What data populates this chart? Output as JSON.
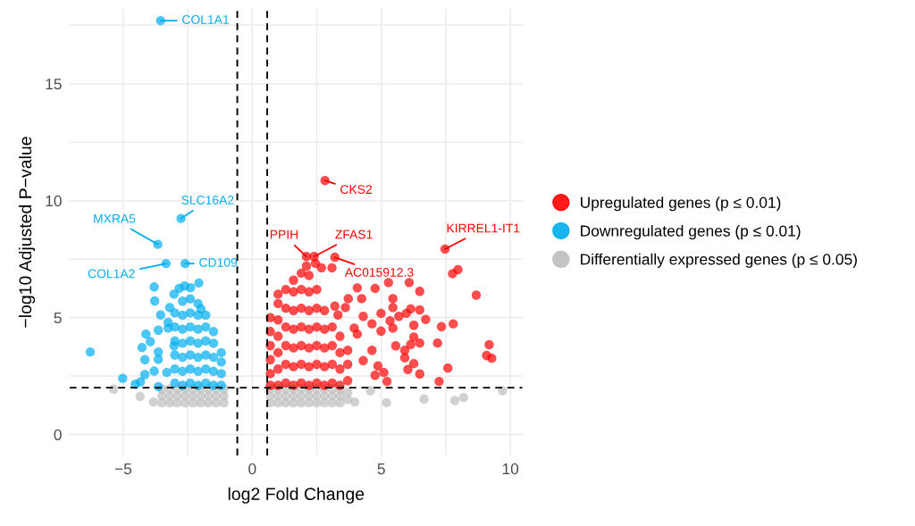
{
  "chart_data": {
    "type": "scatter",
    "xlabel": "log2 Fold Change",
    "ylabel": "−log10 Adjusted P−value",
    "xlim": [
      -7.08,
      10.47
    ],
    "ylim": [
      -0.9,
      18.2
    ],
    "xticks": [
      {
        "value": -5,
        "label": "−5"
      },
      {
        "value": -2.5,
        "label": null
      },
      0,
      {
        "value": 2.5,
        "label": null
      },
      5,
      {
        "value": 7.5,
        "label": null
      },
      10
    ],
    "yticks": [
      0,
      {
        "value": 2.5,
        "label": null
      },
      5,
      {
        "value": 7.5,
        "label": null
      },
      10,
      {
        "value": 12.5,
        "label": null
      },
      15,
      {
        "value": 17.5,
        "label": null
      }
    ],
    "grid": true,
    "legend": "right",
    "marker": "circle",
    "ref_lines": [
      {
        "axis": "x",
        "value": -0.58,
        "color": "#000000",
        "line_style": "dashed"
      },
      {
        "axis": "x",
        "value": 0.58,
        "color": "#000000",
        "line_style": "dashed"
      },
      {
        "axis": "y",
        "value": 2,
        "color": "#000000",
        "line_style": "dashed"
      }
    ],
    "series": [
      {
        "name": "Upregulated genes (p ≤ 0.01)",
        "color": "#ff0000",
        "x": [
          3.09,
          2.1,
          2.45,
          2.68,
          5.28,
          6.08,
          4.76,
          6.49,
          4.07,
          5.45,
          4.24,
          5.45,
          6.14,
          6.49,
          5.97,
          6.72,
          4.99,
          5.34,
          5.68,
          6.26,
          4.64,
          4.99,
          5.45,
          6.26,
          6.49,
          5.56,
          5.91,
          6.14,
          5.91,
          6.26,
          6.03,
          6.49,
          5.1,
          5.22,
          4.87,
          4.07,
          3.72,
          3.61,
          3.2,
          3.32,
          4.3,
          3.95,
          4.64,
          4.3,
          4.76,
          7.76,
          7.97,
          8.68,
          7.79,
          7.33,
          7.18,
          9.18,
          9.08,
          9.28,
          7.58,
          7.24,
          2.82,
          2.1,
          2.4,
          3.2,
          7.47,
          0.7,
          0.7,
          0.7,
          0.7,
          0.7,
          0.7,
          1.0,
          1.0,
          1.0,
          1.0,
          1.0,
          1.0,
          1.0,
          1.3,
          1.3,
          1.3,
          1.3,
          1.3,
          1.3,
          1.6,
          1.6,
          1.6,
          1.6,
          1.6,
          1.6,
          1.6,
          1.9,
          1.9,
          1.9,
          1.9,
          1.9,
          1.9,
          1.9,
          2.2,
          2.2,
          2.2,
          2.2,
          2.2,
          2.2,
          2.2,
          2.5,
          2.5,
          2.5,
          2.5,
          2.5,
          2.5,
          2.8,
          2.8,
          2.8,
          2.8,
          2.8,
          3.1,
          3.1,
          3.1,
          3.1,
          3.4,
          3.4,
          3.4,
          3.4,
          3.7,
          3.7,
          3.7
        ],
        "values": [
          7.13,
          7.2,
          7.32,
          7.13,
          6.5,
          6.5,
          6.25,
          6.12,
          6.27,
          5.81,
          5.81,
          5.43,
          5.37,
          5.33,
          5.18,
          4.92,
          5.18,
          4.86,
          5.05,
          4.67,
          4.73,
          4.42,
          4.55,
          4.17,
          3.91,
          3.79,
          3.6,
          3.85,
          3.28,
          3.03,
          2.78,
          2.59,
          2.65,
          2.27,
          2.93,
          4.29,
          5.81,
          5.43,
          5.49,
          5.11,
          5.05,
          4.55,
          3.6,
          3.16,
          2.53,
          6.88,
          7.05,
          5.96,
          4.73,
          4.61,
          3.91,
          3.84,
          3.38,
          3.26,
          2.84,
          2.27,
          10.86,
          7.61,
          7.61,
          7.58,
          7.93,
          2.1,
          2.6,
          3.2,
          3.8,
          4.4,
          5.0,
          2.1,
          2.8,
          3.5,
          4.2,
          4.9,
          5.6,
          6.0,
          2.2,
          3.0,
          3.8,
          4.6,
          5.4,
          6.2,
          2.1,
          2.9,
          3.7,
          4.5,
          5.3,
          6.1,
          6.6,
          2.2,
          3.0,
          3.8,
          4.6,
          5.4,
          6.2,
          6.9,
          2.1,
          2.9,
          3.7,
          4.5,
          5.3,
          6.1,
          6.8,
          2.2,
          3.0,
          3.8,
          4.6,
          5.4,
          6.2,
          2.1,
          2.9,
          3.7,
          4.5,
          5.3,
          2.2,
          3.0,
          3.8,
          4.6,
          2.1,
          2.8,
          3.5,
          4.2,
          2.3,
          3.0,
          3.6
        ]
      },
      {
        "name": "Downregulated genes (p ≤ 0.01)",
        "color": "#00aeef",
        "x": [
          -6.28,
          -5.02,
          -4.53,
          -4.33,
          -3.8,
          -3.78,
          -4.12,
          -4.27,
          -3.95,
          -3.64,
          -3.64,
          -3.64,
          -4.16,
          -4.16,
          -3.8,
          -3.55,
          -3.26,
          -3.26,
          -3.2,
          -3.03,
          -2.83,
          -2.62,
          -2.39,
          -2.07,
          -1.99,
          -3.64,
          -3.31,
          -3.03,
          -3.55,
          -2.76,
          -3.66,
          -3.34,
          -2.6,
          -3.0,
          -3.0,
          -3.0,
          -3.0,
          -3.0,
          -3.0,
          -2.7,
          -2.7,
          -2.7,
          -2.7,
          -2.7,
          -2.7,
          -2.7,
          -2.4,
          -2.4,
          -2.4,
          -2.4,
          -2.4,
          -2.4,
          -2.4,
          -2.1,
          -2.1,
          -2.1,
          -2.1,
          -2.1,
          -2.1,
          -2.1,
          -1.8,
          -1.8,
          -1.8,
          -1.8,
          -1.8,
          -1.8,
          -1.5,
          -1.5,
          -1.5,
          -1.5,
          -1.5,
          -1.2,
          -1.2,
          -1.2,
          -1.2
        ],
        "values": [
          3.53,
          2.4,
          2.15,
          2.25,
          6.31,
          5.71,
          4.29,
          3.72,
          3.97,
          4.46,
          3.53,
          3.22,
          3.2,
          2.56,
          2.71,
          5.11,
          4.8,
          4.55,
          5.43,
          6.0,
          6.25,
          6.35,
          6.28,
          6.48,
          5.37,
          2.05,
          2.65,
          3.79,
          17.7,
          9.24,
          8.13,
          7.31,
          7.31,
          2.2,
          2.8,
          3.4,
          4.0,
          4.6,
          5.2,
          2.1,
          2.7,
          3.3,
          3.9,
          4.5,
          5.1,
          5.7,
          2.2,
          2.8,
          3.4,
          4.0,
          4.6,
          5.2,
          5.8,
          2.1,
          2.7,
          3.3,
          3.9,
          4.5,
          5.1,
          5.6,
          2.2,
          2.8,
          3.4,
          4.0,
          4.6,
          5.1,
          2.1,
          2.7,
          3.3,
          3.9,
          4.4,
          2.1,
          2.6,
          3.1,
          3.5
        ]
      },
      {
        "name": "Differentially expressed genes (p ≤ 0.05)",
        "color": "#bebebe",
        "x": [
          -5.37,
          -4.35,
          -3.83,
          3.97,
          5.2,
          6.66,
          7.85,
          8.19,
          9.7,
          4.58,
          -3.5,
          -3.5,
          -3.5,
          -3.2,
          -3.2,
          -3.2,
          -2.9,
          -2.9,
          -2.9,
          -2.6,
          -2.6,
          -2.6,
          -2.3,
          -2.3,
          -2.3,
          -2.0,
          -2.0,
          -2.0,
          -1.7,
          -1.7,
          -1.7,
          -1.4,
          -1.4,
          -1.4,
          -1.1,
          -1.1,
          -1.1,
          0.7,
          0.7,
          0.7,
          1.0,
          1.0,
          1.0,
          1.3,
          1.3,
          1.3,
          1.6,
          1.6,
          1.6,
          1.9,
          1.9,
          1.9,
          2.2,
          2.2,
          2.2,
          2.5,
          2.5,
          2.5,
          2.8,
          2.8,
          2.8,
          3.1,
          3.1,
          3.1,
          3.4,
          3.4,
          3.4,
          3.7,
          3.7
        ],
        "values": [
          1.94,
          1.63,
          1.39,
          1.39,
          1.36,
          1.52,
          1.45,
          1.58,
          1.87,
          1.87,
          1.35,
          1.65,
          1.95,
          1.35,
          1.65,
          1.95,
          1.35,
          1.65,
          1.95,
          1.35,
          1.65,
          1.95,
          1.35,
          1.65,
          1.95,
          1.35,
          1.65,
          1.95,
          1.35,
          1.65,
          1.95,
          1.35,
          1.65,
          1.95,
          1.35,
          1.65,
          1.95,
          1.35,
          1.65,
          1.95,
          1.35,
          1.65,
          1.95,
          1.35,
          1.65,
          1.95,
          1.35,
          1.65,
          1.95,
          1.35,
          1.65,
          1.95,
          1.35,
          1.65,
          1.95,
          1.35,
          1.65,
          1.95,
          1.35,
          1.65,
          1.95,
          1.35,
          1.65,
          1.95,
          1.35,
          1.65,
          1.95,
          1.5,
          1.8
        ]
      }
    ],
    "annotations": [
      {
        "text": "COL1A1",
        "x": -3.55,
        "y": 17.7
      },
      {
        "text": "SLC16A2",
        "x": -2.76,
        "y": 9.24
      },
      {
        "text": "MXRA5",
        "x": -3.66,
        "y": 8.13
      },
      {
        "text": "COL1A2",
        "x": -3.34,
        "y": 7.31
      },
      {
        "text": "CD109",
        "x": -2.6,
        "y": 7.31
      },
      {
        "text": "CKS2",
        "x": 2.82,
        "y": 10.86
      },
      {
        "text": "PPIH",
        "x": 2.1,
        "y": 7.61
      },
      {
        "text": "ZFAS1",
        "x": 2.4,
        "y": 7.61
      },
      {
        "text": "AC015912.3",
        "x": 3.2,
        "y": 7.58
      },
      {
        "text": "KIRREL1-IT1",
        "x": 7.47,
        "y": 7.93
      }
    ]
  }
}
